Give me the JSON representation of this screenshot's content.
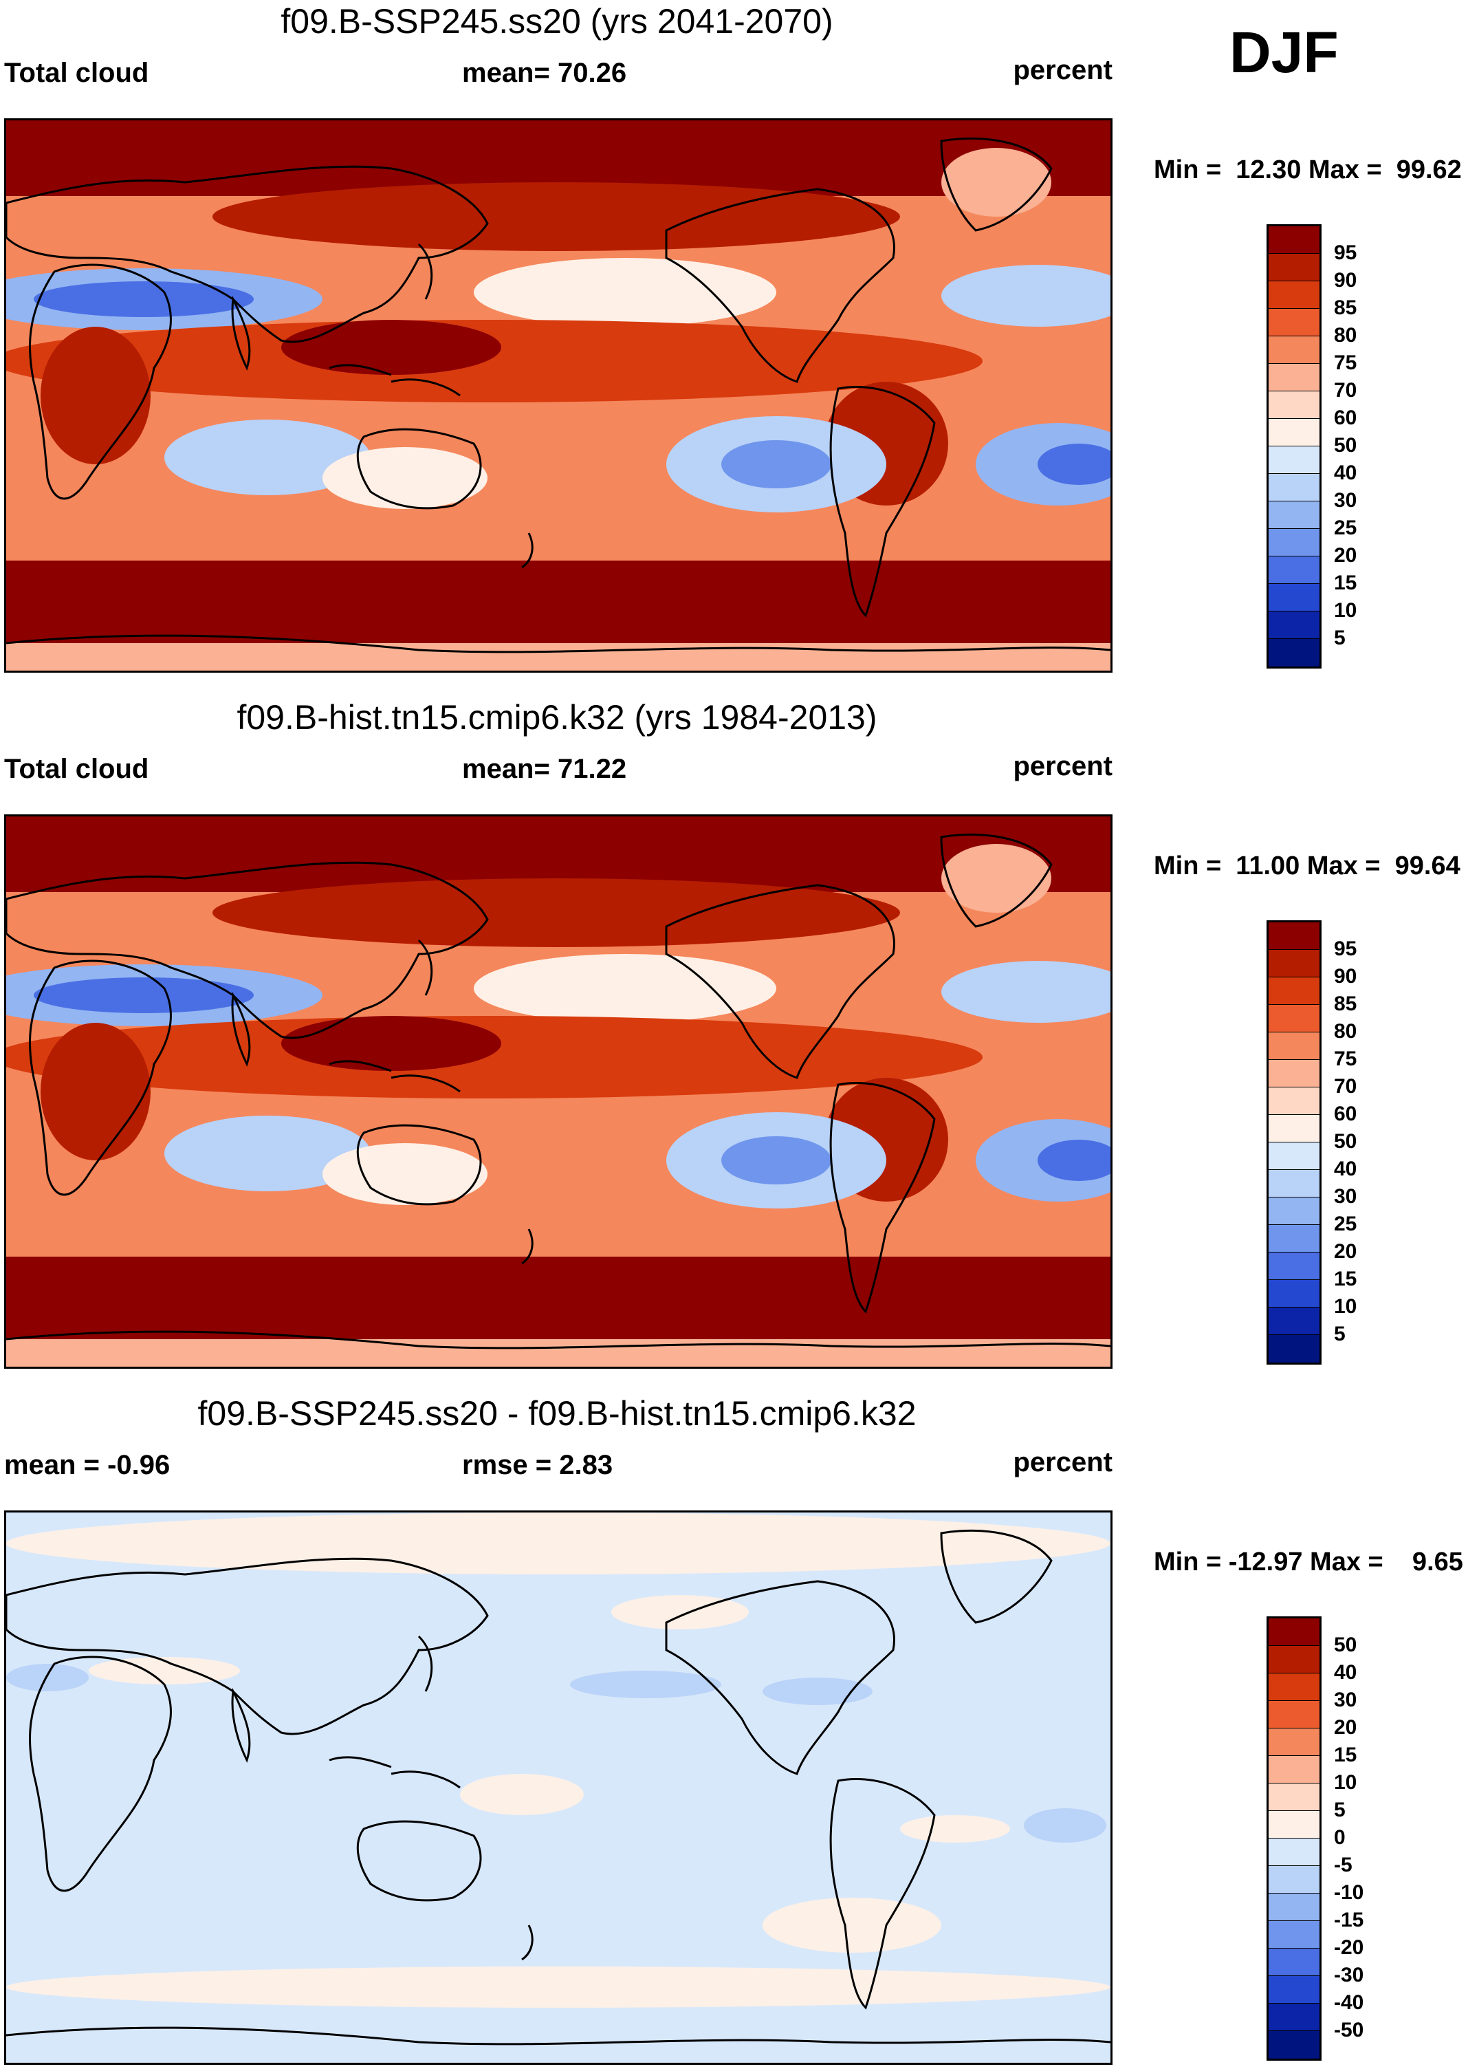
{
  "season": "DJF",
  "panels": [
    {
      "title": "f09.B-SSP245.ss20 (yrs 2041-2070)",
      "left_label": "Total cloud",
      "center_label": "mean=  70.26",
      "right_label": "percent",
      "minmax": "Min =  12.30 Max =  99.62",
      "colorbar_labels": [
        "95",
        "90",
        "85",
        "80",
        "75",
        "70",
        "60",
        "50",
        "40",
        "30",
        "25",
        "20",
        "15",
        "10",
        "5"
      ],
      "colorbar_colors": [
        "#8c0000",
        "#b51d00",
        "#d83b0e",
        "#ec5b2d",
        "#f5875c",
        "#fab194",
        "#fed8c5",
        "#fef0e6",
        "#d8e8fb",
        "#b8d2f8",
        "#93b5f2",
        "#6f95ec",
        "#4a6fe4",
        "#2448d0",
        "#0c24a8",
        "#001480"
      ],
      "map_palette": "warm"
    },
    {
      "title": "f09.B-hist.tn15.cmip6.k32 (yrs 1984-2013)",
      "left_label": "Total cloud",
      "center_label": "mean=  71.22",
      "right_label": "percent",
      "minmax": "Min =  11.00 Max =  99.64",
      "colorbar_labels": [
        "95",
        "90",
        "85",
        "80",
        "75",
        "70",
        "60",
        "50",
        "40",
        "30",
        "25",
        "20",
        "15",
        "10",
        "5"
      ],
      "colorbar_colors": [
        "#8c0000",
        "#b51d00",
        "#d83b0e",
        "#ec5b2d",
        "#f5875c",
        "#fab194",
        "#fed8c5",
        "#fef0e6",
        "#d8e8fb",
        "#b8d2f8",
        "#93b5f2",
        "#6f95ec",
        "#4a6fe4",
        "#2448d0",
        "#0c24a8",
        "#001480"
      ],
      "map_palette": "warm"
    },
    {
      "title": "f09.B-SSP245.ss20 - f09.B-hist.tn15.cmip6.k32",
      "left_label": "mean =  -0.96",
      "center_label": "rmse =    2.83",
      "right_label": "percent",
      "minmax": "Min = -12.97 Max =    9.65",
      "colorbar_labels": [
        "50",
        "40",
        "30",
        "20",
        "15",
        "10",
        "5",
        "0",
        "-5",
        "-10",
        "-15",
        "-20",
        "-30",
        "-40",
        "-50"
      ],
      "colorbar_colors": [
        "#8c0000",
        "#b51d00",
        "#d83b0e",
        "#ec5b2d",
        "#f5875c",
        "#fab194",
        "#fed8c5",
        "#fef0e6",
        "#d8e8fb",
        "#b8d2f8",
        "#93b5f2",
        "#6f95ec",
        "#4a6fe4",
        "#2448d0",
        "#0c24a8",
        "#001480"
      ],
      "map_palette": "diff"
    }
  ]
}
